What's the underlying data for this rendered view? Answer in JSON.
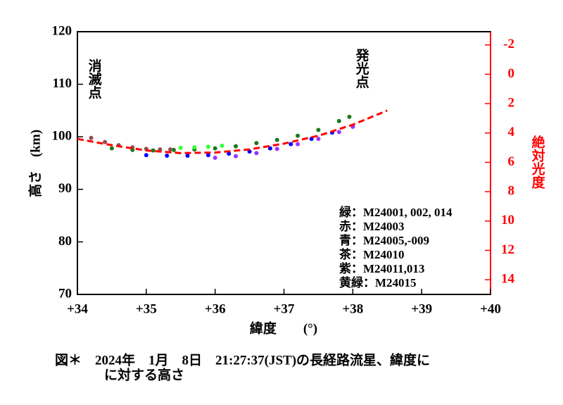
{
  "chart_data": {
    "type": "scatter",
    "xlabel": "緯度　　(°)",
    "ylabel": "高さ　(km)",
    "y2label": "絶対光度",
    "y2color": "#ff0000",
    "annotations": [
      "消滅点",
      "発光点"
    ],
    "legend_text": [
      "緑：M24001, 002, 014",
      "赤：M24003",
      "青：M24005,-009",
      "茶：M24010",
      "紫：M24011,013",
      "黄緑：M24015"
    ],
    "caption": [
      "図＊　2024年　1月　8日　21:27:37(JST)の長経路流星、緯度に",
      "に対する高さ"
    ],
    "xlim": [
      34,
      40
    ],
    "xticks": [
      {
        "value": 34,
        "label": "+34"
      },
      {
        "value": 35,
        "label": "+35"
      },
      {
        "value": 36,
        "label": "+36"
      },
      {
        "value": 37,
        "label": "+37"
      },
      {
        "value": 38,
        "label": "+38"
      },
      {
        "value": 39,
        "label": "+39"
      },
      {
        "value": 40,
        "label": "+40"
      }
    ],
    "ylim": [
      70,
      120
    ],
    "yticks": [
      70,
      80,
      90,
      100,
      110,
      120
    ],
    "y2lim": [
      15,
      -2.9
    ],
    "y2ticks": [
      -2,
      0,
      2,
      4,
      6,
      8,
      10,
      12,
      14
    ],
    "series": [
      {
        "color": "#1a7a1a",
        "style": "dots",
        "x": [
          34.5,
          34.8,
          35.1,
          35.4,
          35.7,
          36.0,
          36.3,
          36.6,
          36.9,
          37.2,
          37.5,
          37.8,
          37.95
        ],
        "values": [
          97.8,
          97.5,
          97.4,
          97.5,
          97.6,
          97.8,
          98.2,
          98.8,
          99.4,
          100.2,
          101.3,
          103.0,
          103.8
        ]
      },
      {
        "color": "#0000ff",
        "style": "dots",
        "x": [
          35.0,
          35.3,
          35.6,
          35.9,
          36.2,
          36.5,
          36.8,
          37.1,
          37.4,
          37.7,
          38.0
        ],
        "values": [
          96.5,
          96.4,
          96.4,
          96.5,
          96.8,
          97.2,
          97.8,
          98.6,
          99.6,
          100.8,
          102.0
        ]
      },
      {
        "color": "#8b5050",
        "style": "dots",
        "x": [
          34.2,
          34.4,
          34.6,
          34.8,
          35.0,
          35.2,
          35.35
        ],
        "values": [
          99.8,
          99.0,
          98.4,
          98.0,
          97.7,
          97.6,
          97.6
        ]
      },
      {
        "color": "#9933ff",
        "style": "dots",
        "x": [
          36.0,
          36.3,
          36.6,
          36.9,
          37.2,
          37.5,
          37.8,
          38.0
        ],
        "values": [
          96.0,
          96.3,
          96.9,
          97.7,
          98.6,
          99.6,
          100.9,
          101.9
        ]
      },
      {
        "color": "#33ff33",
        "style": "dots",
        "x": [
          35.5,
          35.7,
          35.9,
          36.1
        ],
        "values": [
          97.9,
          98.0,
          98.1,
          98.3
        ]
      },
      {
        "color": "#ff0000",
        "style": "dashed",
        "x": [
          34.0,
          34.5,
          35.0,
          35.5,
          36.0,
          36.5,
          37.0,
          37.5,
          38.0,
          38.5
        ],
        "values": [
          99.6,
          98.4,
          97.4,
          96.9,
          97.0,
          97.6,
          98.7,
          100.2,
          102.3,
          105.0
        ]
      }
    ]
  }
}
